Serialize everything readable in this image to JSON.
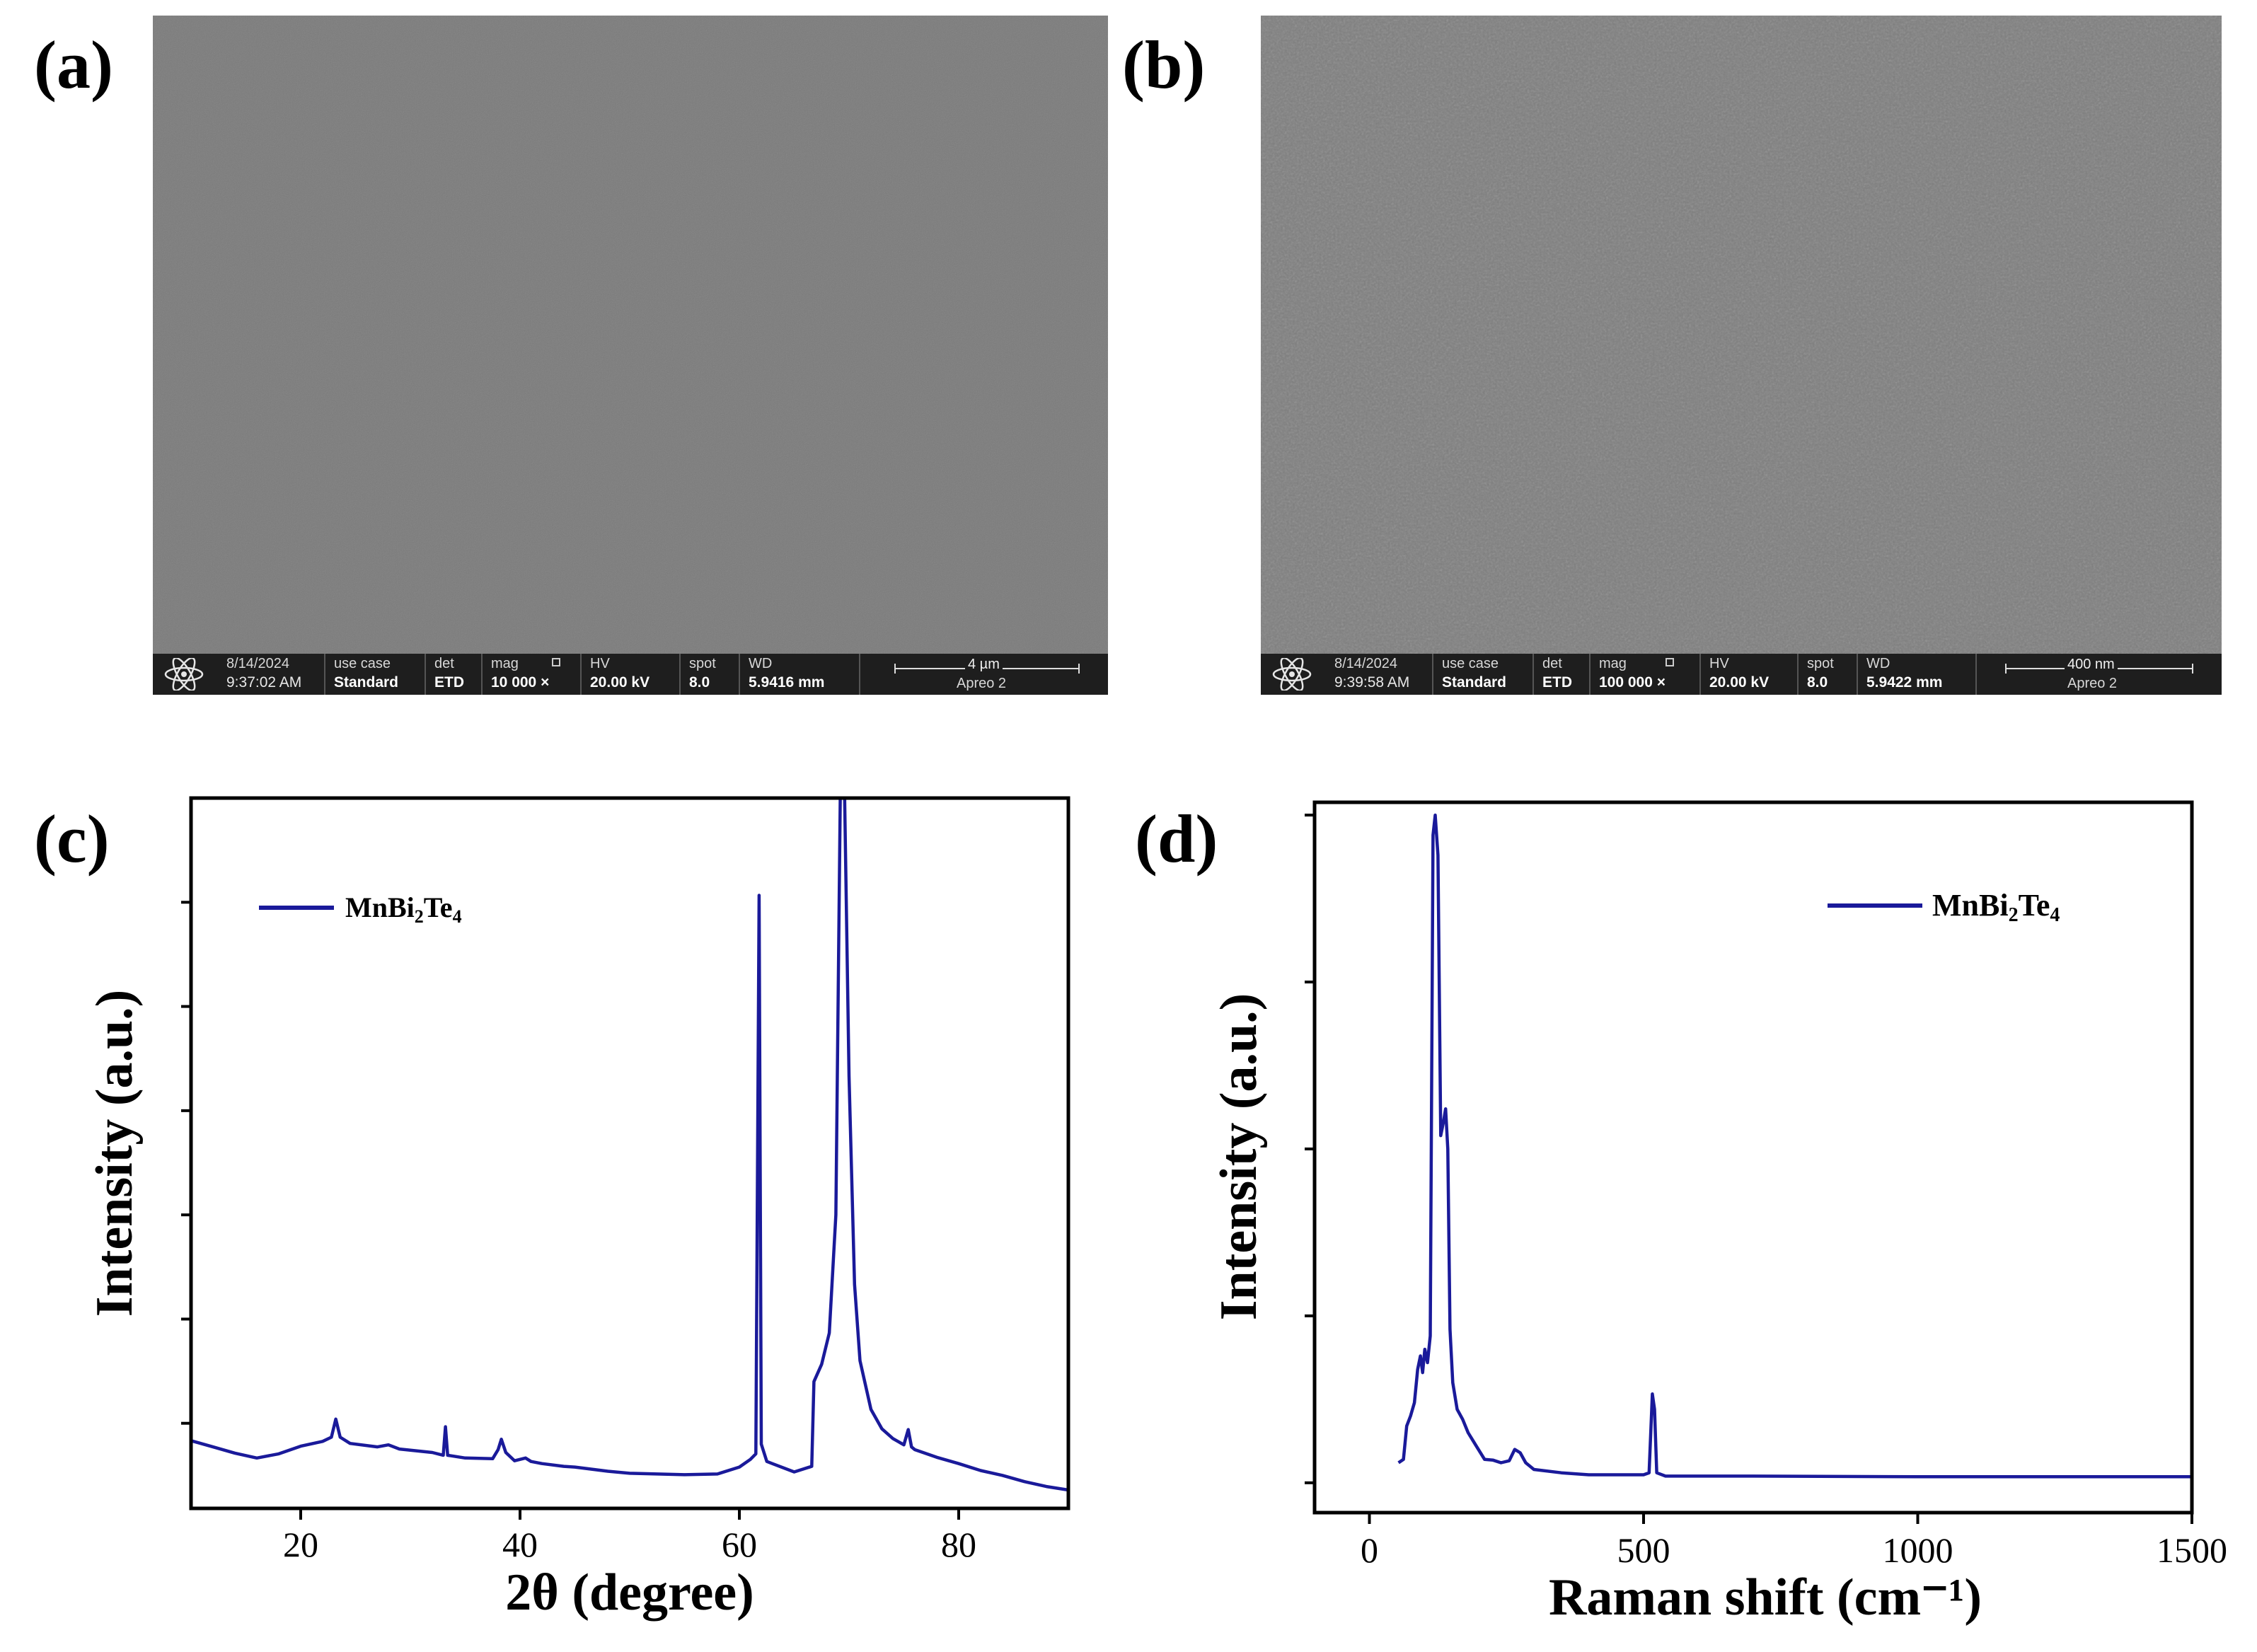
{
  "panels": {
    "a": {
      "label": "(a)"
    },
    "b": {
      "label": "(b)"
    },
    "c": {
      "label": "(c)"
    },
    "d": {
      "label": "(d)"
    }
  },
  "sem_a": {
    "date": "8/14/2024",
    "time": "9:37:02 AM",
    "use_case_key": "use case",
    "use_case_val": "Standard",
    "det_key": "det",
    "det_val": "ETD",
    "mag_key": "mag",
    "mag_val": "10 000 ×",
    "hv_key": "HV",
    "hv_val": "20.00 kV",
    "spot_key": "spot",
    "spot_val": "8.0",
    "wd_key": "WD",
    "wd_val": "5.9416 mm",
    "scale_label": "4 µm",
    "instrument": "Apreo 2"
  },
  "sem_b": {
    "date": "8/14/2024",
    "time": "9:39:58 AM",
    "use_case_key": "use case",
    "use_case_val": "Standard",
    "det_key": "det",
    "det_val": "ETD",
    "mag_key": "mag",
    "mag_val": "100 000 ×",
    "hv_key": "HV",
    "hv_val": "20.00 kV",
    "spot_key": "spot",
    "spot_val": "8.0",
    "wd_key": "WD",
    "wd_val": "5.9422 mm",
    "scale_label": "400 nm",
    "instrument": "Apreo 2"
  },
  "colors": {
    "series": "#1a1a9a",
    "axis": "#000000",
    "sem_bar": "#1e1e1e"
  },
  "chart_data": [
    {
      "id": "c",
      "type": "line",
      "title": "",
      "xlabel": "2θ (degree)",
      "ylabel": "Intensity (a.u.)",
      "xlim": [
        10,
        90
      ],
      "ylim": [
        0,
        100
      ],
      "xticks": [
        20,
        40,
        60,
        80
      ],
      "xtick_labels": [
        "20",
        "40",
        "60",
        "80"
      ],
      "yticks": [
        10,
        25,
        40,
        55,
        70,
        85
      ],
      "legend": "top-left",
      "series": [
        {
          "name": "MnBi2Te4",
          "points": [
            [
              10,
              7.5
            ],
            [
              12,
              6.6
            ],
            [
              14,
              5.7
            ],
            [
              16,
              5.0
            ],
            [
              18,
              5.6
            ],
            [
              20,
              6.7
            ],
            [
              22,
              7.4
            ],
            [
              22.8,
              8.0
            ],
            [
              23.2,
              10.6
            ],
            [
              23.6,
              8.0
            ],
            [
              24.5,
              7.1
            ],
            [
              27,
              6.6
            ],
            [
              28,
              6.9
            ],
            [
              29,
              6.3
            ],
            [
              32,
              5.8
            ],
            [
              33,
              5.4
            ],
            [
              33.2,
              9.5
            ],
            [
              33.4,
              5.4
            ],
            [
              35,
              5.0
            ],
            [
              37.5,
              4.9
            ],
            [
              38,
              6.2
            ],
            [
              38.3,
              7.7
            ],
            [
              38.7,
              5.8
            ],
            [
              39.5,
              4.6
            ],
            [
              40.5,
              5.0
            ],
            [
              41,
              4.5
            ],
            [
              42,
              4.2
            ],
            [
              44,
              3.8
            ],
            [
              45,
              3.7
            ],
            [
              48,
              3.1
            ],
            [
              50,
              2.8
            ],
            [
              55,
              2.6
            ],
            [
              58,
              2.7
            ],
            [
              60,
              3.7
            ],
            [
              61,
              4.8
            ],
            [
              61.5,
              5.6
            ],
            [
              61.8,
              86.0
            ],
            [
              62,
              7.0
            ],
            [
              62.5,
              4.5
            ],
            [
              63,
              4.2
            ],
            [
              65,
              3.0
            ],
            [
              66.6,
              3.8
            ],
            [
              66.8,
              16.0
            ],
            [
              67.5,
              18.5
            ],
            [
              68.2,
              23.0
            ],
            [
              68.8,
              40.0
            ],
            [
              69.2,
              100.0
            ],
            [
              69.6,
              100.0
            ],
            [
              70,
              60.0
            ],
            [
              70.5,
              30.0
            ],
            [
              71,
              19.0
            ],
            [
              72,
              12.0
            ],
            [
              73,
              9.2
            ],
            [
              74,
              7.8
            ],
            [
              75,
              6.9
            ],
            [
              75.4,
              9.1
            ],
            [
              75.7,
              6.6
            ],
            [
              76,
              6.2
            ],
            [
              78,
              5.1
            ],
            [
              80,
              4.2
            ],
            [
              82,
              3.2
            ],
            [
              84,
              2.5
            ],
            [
              86,
              1.6
            ],
            [
              88,
              0.9
            ],
            [
              90,
              0.4
            ]
          ]
        }
      ]
    },
    {
      "id": "d",
      "type": "line",
      "title": "",
      "xlabel": "Raman shift (cm⁻¹)",
      "ylabel": "Intensity (a.u.)",
      "xlim": [
        -100,
        1500
      ],
      "ylim": [
        0,
        100
      ],
      "xticks": [
        0,
        500,
        1000,
        1500
      ],
      "xtick_labels": [
        "0",
        "500",
        "1000",
        "1500"
      ],
      "yticks": [
        0,
        25,
        50,
        75,
        100
      ],
      "legend": "top-right",
      "series": [
        {
          "name": "MnBi2Te4",
          "points": [
            [
              53,
              3.0
            ],
            [
              62,
              3.5
            ],
            [
              68,
              8.5
            ],
            [
              75,
              10.0
            ],
            [
              82,
              12.0
            ],
            [
              88,
              17.0
            ],
            [
              93,
              19.0
            ],
            [
              97,
              16.5
            ],
            [
              101,
              20.0
            ],
            [
              106,
              18.0
            ],
            [
              111,
              22.0
            ],
            [
              116,
              97.0
            ],
            [
              120,
              100.0
            ],
            [
              125,
              94.0
            ],
            [
              130,
              52.0
            ],
            [
              135,
              54.0
            ],
            [
              139,
              56.0
            ],
            [
              143,
              50.0
            ],
            [
              147,
              23.0
            ],
            [
              152,
              15.0
            ],
            [
              160,
              11.0
            ],
            [
              170,
              9.5
            ],
            [
              180,
              7.5
            ],
            [
              195,
              5.5
            ],
            [
              210,
              3.5
            ],
            [
              225,
              3.4
            ],
            [
              240,
              3.0
            ],
            [
              255,
              3.3
            ],
            [
              265,
              5.0
            ],
            [
              275,
              4.5
            ],
            [
              285,
              3.0
            ],
            [
              300,
              2.0
            ],
            [
              350,
              1.5
            ],
            [
              400,
              1.2
            ],
            [
              450,
              1.2
            ],
            [
              500,
              1.2
            ],
            [
              510,
              1.5
            ],
            [
              516,
              13.3
            ],
            [
              520,
              11.0
            ],
            [
              524,
              1.5
            ],
            [
              540,
              1.0
            ],
            [
              700,
              1.0
            ],
            [
              1000,
              0.9
            ],
            [
              1500,
              0.9
            ]
          ]
        }
      ]
    }
  ]
}
